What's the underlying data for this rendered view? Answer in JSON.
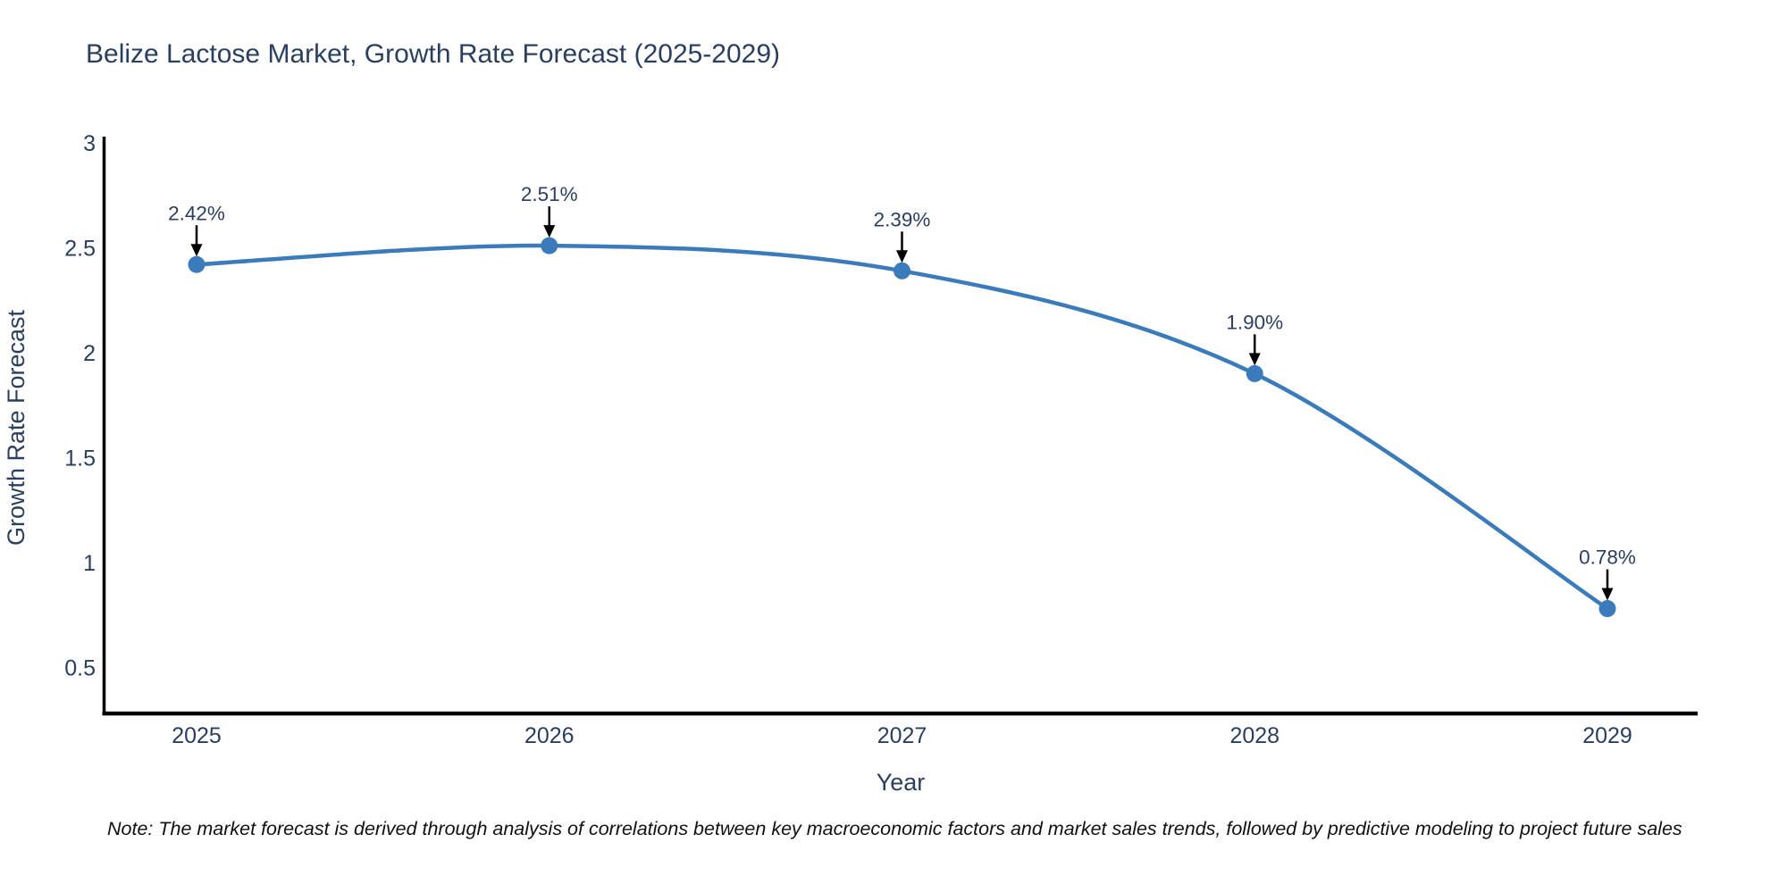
{
  "title": {
    "text": "Belize Lactose Market, Growth Rate Forecast (2025-2029)",
    "color": "#2a3f5f"
  },
  "note": {
    "text": "Note: The market forecast is derived through analysis of correlations between key macroeconomic factors and market sales trends, followed by predictive modeling to project future sales"
  },
  "chart_data": {
    "type": "line",
    "line_shape": "spline",
    "title": "Belize Lactose Market, Growth Rate Forecast (2025-2029)",
    "xlabel": "Year",
    "ylabel": "Growth Rate Forecast",
    "x": [
      2025,
      2026,
      2027,
      2028,
      2029
    ],
    "values": [
      2.42,
      2.51,
      2.39,
      1.9,
      0.78
    ],
    "point_labels": [
      "2.42%",
      "2.51%",
      "2.39%",
      "1.90%",
      "0.78%"
    ],
    "yticks": [
      3,
      2.5,
      2,
      1.5,
      1,
      0.5
    ],
    "ylim": [
      0.28,
      3.0
    ],
    "grid": false,
    "legend": "none",
    "colors": {
      "line": "#3b7bbb",
      "marker": "#3b7bbb",
      "axis": "#000000",
      "tick_label": "#2a3f5f",
      "axis_title": "#2a3f5f",
      "annotation_text": "#2a3f5f",
      "annotation_arrow": "#000000",
      "background": "#ffffff"
    }
  }
}
